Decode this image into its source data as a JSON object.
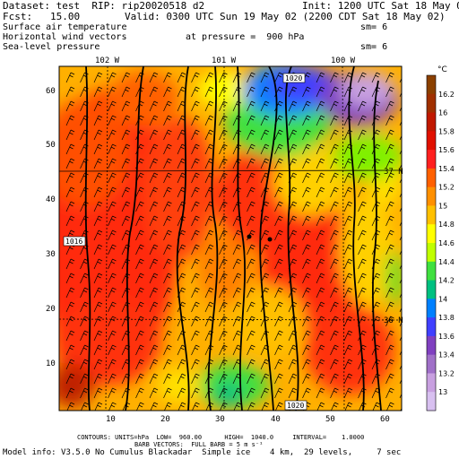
{
  "header": {
    "dataset": "Dataset: test  RIP: rip20020518 d2",
    "init": "Init: 1200 UTC Sat 18 May 02",
    "fcst": "Fcst:   15.00",
    "valid": "Valid: 0300 UTC Sun 19 May 02 (2200 CDT Sat 18 May 02)",
    "line1": "Surface air temperature",
    "sm1": "sm= 6",
    "line2": "Horizontal wind vectors",
    "pressure": "at pressure =  900 hPa",
    "line3": "Sea-level pressure",
    "sm2": "sm= 6"
  },
  "map": {
    "lon_labels": [
      "102 W",
      "101 W",
      "100 W"
    ],
    "lat_labels": [
      "37 N",
      "36 N"
    ],
    "x_ticks": [
      "10",
      "20",
      "30",
      "40",
      "50",
      "60"
    ],
    "y_ticks": [
      "10",
      "20",
      "30",
      "40",
      "50",
      "60"
    ],
    "isobar_labels": [
      "1020",
      "1016",
      "1020"
    ]
  },
  "colorbar": {
    "unit": "°C",
    "labels": [
      "16.2",
      "16",
      "15.8",
      "15.6",
      "15.4",
      "15.2",
      "15",
      "14.8",
      "14.6",
      "14.4",
      "14.2",
      "14",
      "13.8",
      "13.6",
      "13.4",
      "13.2",
      "13"
    ],
    "colors": [
      "#8b4000",
      "#a03000",
      "#c01800",
      "#e01000",
      "#ff2020",
      "#ff6000",
      "#ff9000",
      "#ffc000",
      "#ffff00",
      "#c0ff00",
      "#40e040",
      "#00c080",
      "#0080ff",
      "#4040ff",
      "#8040c0",
      "#a070c8",
      "#c8a0e0",
      "#d8c0f0"
    ]
  },
  "footer": {
    "contours": "CONTOURS: UNITS=hPa  LOW=  960.00      HIGH=  1040.0     INTERVAL=    1.0000",
    "barbs": "BARB VECTORS:  FULL BARB = 5 m s⁻¹",
    "model": "Model info: V3.5.0 No Cumulus Blackadar  Simple ice    4 km,  29 levels,     7 sec"
  }
}
